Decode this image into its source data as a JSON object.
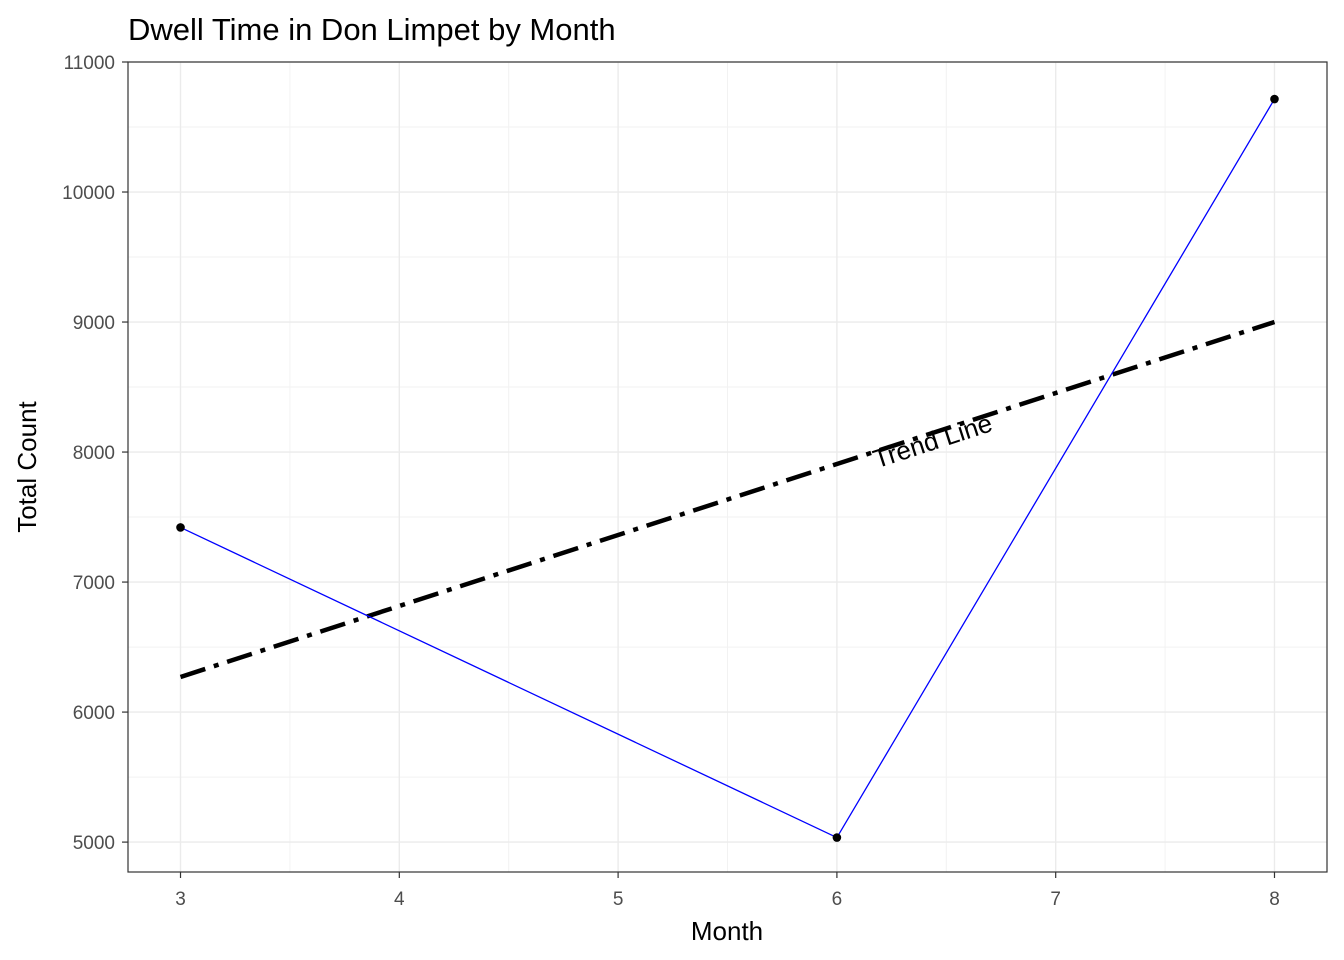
{
  "chart_data": {
    "type": "line",
    "title": "Dwell Time in Don Limpet by Month",
    "xlabel": "Month",
    "ylabel": "Total Count",
    "xlim": [
      2.76,
      8.24
    ],
    "ylim": [
      4770,
      11000
    ],
    "x_ticks": [
      3,
      4,
      5,
      6,
      7,
      8
    ],
    "y_ticks": [
      5000,
      6000,
      7000,
      8000,
      9000,
      10000,
      11000
    ],
    "grid": true,
    "series": [
      {
        "color": "#0000ff",
        "points": [
          {
            "x": 3,
            "y": 7420
          },
          {
            "x": 6,
            "y": 5035
          },
          {
            "x": 8,
            "y": 10715
          }
        ]
      }
    ],
    "trend_line": {
      "color": "#000000",
      "style": "dashdot",
      "points": [
        {
          "x": 3,
          "y": 6270
        },
        {
          "x": 8,
          "y": 9000
        }
      ]
    },
    "annotations": [
      {
        "text": "Trend Line",
        "x": 6.45,
        "y": 8020
      }
    ]
  }
}
